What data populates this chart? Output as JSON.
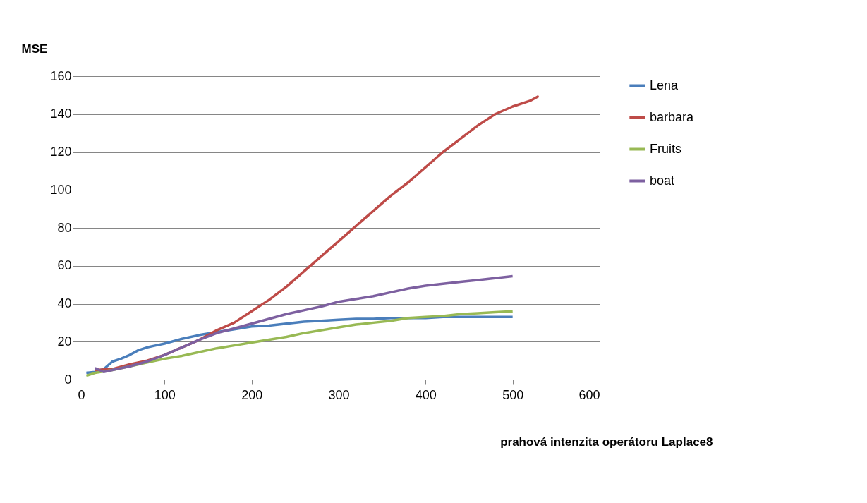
{
  "chart_data": {
    "type": "line",
    "xlabel": "prahová  intenzita operátoru Laplace8",
    "ylabel": "MSE",
    "xlim": [
      0,
      600
    ],
    "xticks": [
      0,
      100,
      200,
      300,
      400,
      500,
      600
    ],
    "ylim": [
      0,
      160
    ],
    "yticks": [
      0,
      20,
      40,
      60,
      80,
      100,
      120,
      140,
      160
    ],
    "grid": "y",
    "legend": "right",
    "marker": "none",
    "line_style": "solid",
    "series": [
      {
        "name": "Lena",
        "color": "#4a7ebb",
        "x": [
          10,
          20,
          30,
          40,
          50,
          60,
          70,
          80,
          90,
          100,
          120,
          140,
          160,
          180,
          200,
          220,
          240,
          260,
          280,
          300,
          320,
          340,
          360,
          380,
          400,
          420,
          440,
          460,
          480,
          500
        ],
        "values": [
          3.5,
          4,
          5.5,
          9.5,
          11,
          13,
          15.5,
          17,
          18,
          19,
          21.5,
          23.5,
          25,
          26.5,
          28,
          28.5,
          29.5,
          30.5,
          31,
          31.5,
          32,
          32,
          32.5,
          32.5,
          32.5,
          33,
          33,
          33,
          33,
          33
        ]
      },
      {
        "name": "barbara",
        "color": "#be4b48",
        "x": [
          20,
          40,
          60,
          80,
          100,
          120,
          140,
          160,
          180,
          200,
          220,
          240,
          260,
          280,
          300,
          320,
          340,
          360,
          380,
          400,
          420,
          440,
          460,
          480,
          500,
          520,
          530
        ],
        "values": [
          5,
          5.5,
          8,
          10,
          13,
          17,
          21,
          26,
          30,
          36,
          42,
          49,
          57,
          65,
          73,
          81,
          89,
          97,
          104,
          112,
          120,
          127,
          134,
          140,
          144,
          147,
          149.5
        ]
      },
      {
        "name": "Fruits",
        "color": "#98b954",
        "x": [
          10,
          20,
          40,
          60,
          80,
          100,
          120,
          140,
          160,
          180,
          200,
          220,
          240,
          260,
          280,
          300,
          320,
          340,
          360,
          380,
          400,
          420,
          440,
          460,
          480,
          500
        ],
        "values": [
          2,
          3.5,
          5,
          7,
          9,
          11,
          12.5,
          14.5,
          16.5,
          18,
          19.5,
          21,
          22.5,
          24.5,
          26,
          27.5,
          29,
          30,
          31,
          32.5,
          33,
          33.5,
          34.5,
          35,
          35.5,
          36
        ]
      },
      {
        "name": "boat",
        "color": "#7d60a0",
        "x": [
          20,
          30,
          40,
          60,
          80,
          100,
          120,
          140,
          160,
          180,
          200,
          220,
          240,
          260,
          280,
          300,
          320,
          340,
          360,
          380,
          400,
          420,
          440,
          460,
          480,
          500
        ],
        "values": [
          6,
          4,
          5,
          7,
          9.5,
          13,
          17,
          21,
          24.5,
          27,
          29.5,
          32,
          34.5,
          36.5,
          38.5,
          41,
          42.5,
          44,
          46,
          48,
          49.5,
          50.5,
          51.5,
          52.5,
          53.5,
          54.5
        ]
      }
    ]
  }
}
